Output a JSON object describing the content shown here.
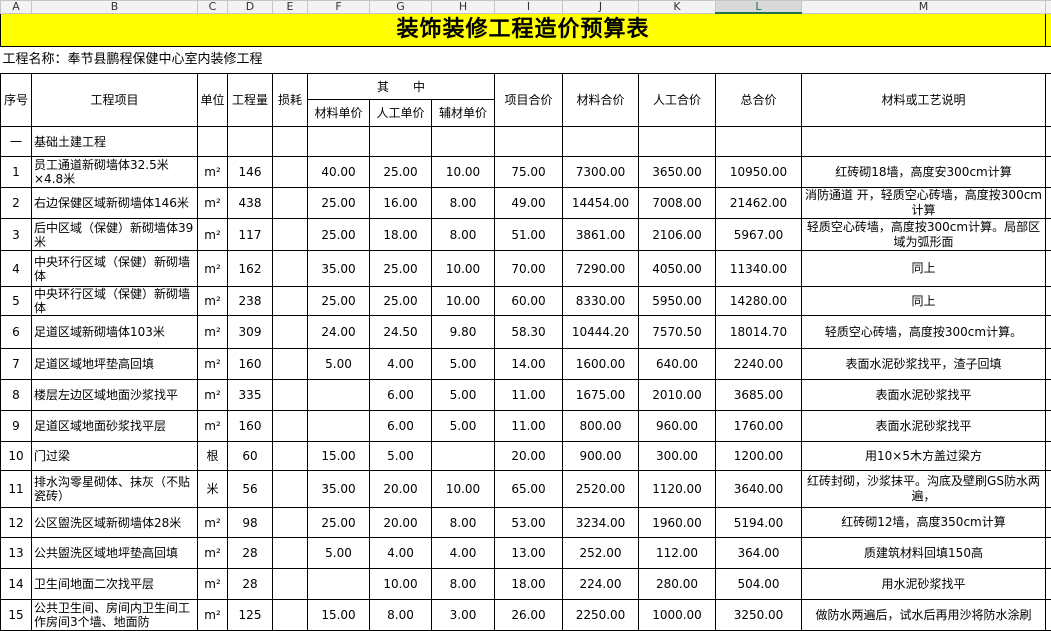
{
  "column_letters": [
    "A",
    "B",
    "C",
    "D",
    "E",
    "F",
    "G",
    "H",
    "I",
    "J",
    "K",
    "L",
    "M"
  ],
  "title": "装饰装修工程造价预算表",
  "project_name": "工程名称：奉节县鹏程保健中心室内装修工程",
  "header": {
    "no": "序号",
    "item": "工程项目",
    "unit": "单位",
    "qty": "工程量",
    "loss": "损耗",
    "group": "其　　中",
    "material_unit": "材料单价",
    "labor_unit": "人工单价",
    "aux_unit": "辅材单价",
    "item_total": "项目合价",
    "material_total": "材料合价",
    "labor_total": "人工合价",
    "total": "总合价",
    "note": "材料或工艺说明"
  },
  "section": {
    "no": "一",
    "name": "基础土建工程"
  },
  "rows": [
    [
      "1",
      "员工通道新砌墙体32.5米×4.8米",
      "m²",
      "146",
      null,
      "40.00",
      "25.00",
      "10.00",
      "75.00",
      "7300.00",
      "3650.00",
      "10950.00",
      "红砖砌18墙，高度安300cm计算"
    ],
    [
      "2",
      "右边保健区域新砌墙体146米",
      "m²",
      "438",
      null,
      "25.00",
      "16.00",
      "8.00",
      "49.00",
      "14454.00",
      "7008.00",
      "21462.00",
      "消防通道 开，轻质空心砖墙，高度按300cm计算"
    ],
    [
      "3",
      "后中区域（保健）新砌墙体39米",
      "m²",
      "117",
      null,
      "25.00",
      "18.00",
      "8.00",
      "51.00",
      "3861.00",
      "2106.00",
      "5967.00",
      "轻质空心砖墙，高度按300cm计算。局部区域为弧形面"
    ],
    [
      "4",
      "中央环行区域（保健）新砌墙体",
      "m²",
      "162",
      null,
      "35.00",
      "25.00",
      "10.00",
      "70.00",
      "7290.00",
      "4050.00",
      "11340.00",
      "同上"
    ],
    [
      "5",
      "中央环行区域（保健）新砌墙体",
      "m²",
      "238",
      null,
      "25.00",
      "25.00",
      "10.00",
      "60.00",
      "8330.00",
      "5950.00",
      "14280.00",
      "同上"
    ],
    [
      "6",
      "足道区域新砌墙体103米",
      "m²",
      "309",
      null,
      "24.00",
      "24.50",
      "9.80",
      "58.30",
      "10444.20",
      "7570.50",
      "18014.70",
      "轻质空心砖墙，高度按300cm计算。"
    ],
    [
      "7",
      "足道区域地坪垫高回填",
      "m²",
      "160",
      null,
      "5.00",
      "4.00",
      "5.00",
      "14.00",
      "1600.00",
      "640.00",
      "2240.00",
      "表面水泥砂浆找平，渣子回填"
    ],
    [
      "8",
      "楼层左边区域地面沙浆找平",
      "m²",
      "335",
      null,
      null,
      "6.00",
      "5.00",
      "11.00",
      "1675.00",
      "2010.00",
      "3685.00",
      "表面水泥砂浆找平"
    ],
    [
      "9",
      "足道区域地面砂浆找平层",
      "m²",
      "160",
      null,
      null,
      "6.00",
      "5.00",
      "11.00",
      "800.00",
      "960.00",
      "1760.00",
      "表面水泥砂浆找平"
    ],
    [
      "10",
      "门过梁",
      "根",
      "60",
      null,
      "15.00",
      "5.00",
      null,
      "20.00",
      "900.00",
      "300.00",
      "1200.00",
      "用10×5木方盖过梁方"
    ],
    [
      "11",
      "排水沟零星砌体、抹灰（不贴瓷砖）",
      "米",
      "56",
      null,
      "35.00",
      "20.00",
      "10.00",
      "65.00",
      "2520.00",
      "1120.00",
      "3640.00",
      "红砖封砌，沙浆抹平。沟底及壁刷GS防水两遍，"
    ],
    [
      "12",
      "公区盥洗区域新砌墙体28米",
      "m²",
      "98",
      null,
      "25.00",
      "20.00",
      "8.00",
      "53.00",
      "3234.00",
      "1960.00",
      "5194.00",
      "红砖砌12墙，高度350cm计算"
    ],
    [
      "13",
      "公共盥洗区域地坪垫高回填",
      "m²",
      "28",
      null,
      "5.00",
      "4.00",
      "4.00",
      "13.00",
      "252.00",
      "112.00",
      "364.00",
      "质建筑材料回填150高"
    ],
    [
      "14",
      "卫生间地面二次找平层",
      "m²",
      "28",
      null,
      null,
      "10.00",
      "8.00",
      "18.00",
      "224.00",
      "280.00",
      "504.00",
      "用水泥砂浆找平"
    ],
    [
      "15",
      "公共卫生间、房间内卫生间工作房间3个墙、地面防",
      "m²",
      "125",
      null,
      "15.00",
      "8.00",
      "3.00",
      "26.00",
      "2250.00",
      "1000.00",
      "3250.00",
      "做防水两遍后，试水后再用沙将防水涂刷"
    ]
  ]
}
